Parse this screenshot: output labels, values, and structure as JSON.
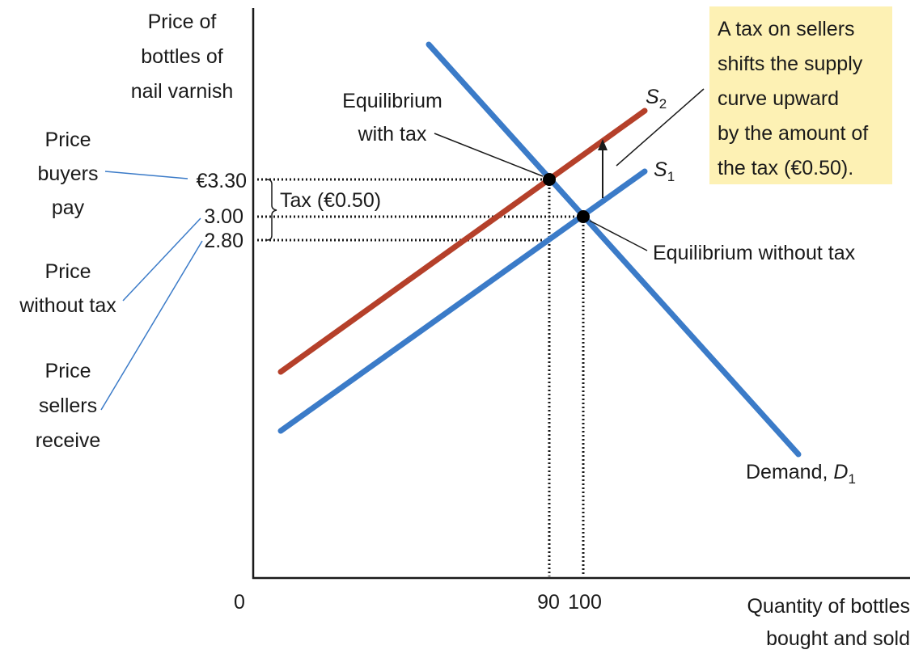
{
  "y_axis_label": [
    "Price of",
    "bottles of",
    "nail varnish"
  ],
  "x_axis_label": [
    "Quantity of bottles",
    "bought and sold"
  ],
  "price_labels": [
    {
      "lines": [
        "Price",
        "buyers",
        "pay"
      ],
      "tick": "€3.30"
    },
    {
      "lines": [
        "Price",
        "without tax"
      ],
      "tick": "3.00"
    },
    {
      "lines": [
        "Price",
        "sellers",
        "receive"
      ],
      "tick": "2.80"
    }
  ],
  "origin": "0",
  "quantity_ticks": [
    "90",
    "100"
  ],
  "tax_label": "Tax (€0.50)",
  "equilibrium_with_tax": [
    "Equilibrium",
    "with tax"
  ],
  "equilibrium_without_tax": "Equilibrium without  tax",
  "supply_2": {
    "letter": "S",
    "subscript": "2"
  },
  "supply_1": {
    "letter": "S",
    "subscript": "1"
  },
  "demand": {
    "text": "Demand, ",
    "letter": "D",
    "subscript": "1"
  },
  "callout": [
    "A tax on sellers",
    "shifts the supply",
    "curve upward",
    "by the amount of",
    "the tax (€0.50)."
  ]
}
